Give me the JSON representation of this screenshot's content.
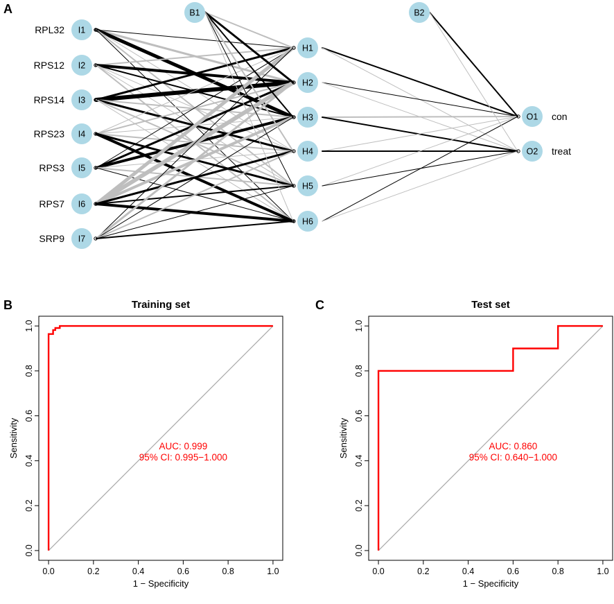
{
  "panel_labels": {
    "a": "A",
    "b": "B",
    "c": "C"
  },
  "network": {
    "genes": [
      "RPL32",
      "RPS12",
      "RPS14",
      "RPS23",
      "RPS3",
      "RPS7",
      "SRP9"
    ],
    "input_nodes": [
      "I1",
      "I2",
      "I3",
      "I4",
      "I5",
      "I6",
      "I7"
    ],
    "hidden_nodes": [
      "H1",
      "H2",
      "H3",
      "H4",
      "H5",
      "H6"
    ],
    "output_nodes": [
      "O1",
      "O2"
    ],
    "output_labels": [
      "con",
      "treat"
    ],
    "bias_nodes": [
      "B1",
      "B2"
    ],
    "colors": {
      "node": "#add8e6",
      "positive_weight": "#000000",
      "negative_weight": "#bebebe"
    },
    "input_hidden_weights": [
      [
        [
          1,
          "b"
        ],
        [
          3,
          "g"
        ],
        [
          5,
          "b"
        ],
        [
          1,
          "g"
        ],
        [
          2,
          "g"
        ],
        [
          1,
          "b"
        ]
      ],
      [
        [
          2,
          "g"
        ],
        [
          4,
          "b"
        ],
        [
          2,
          "b"
        ],
        [
          1,
          "g"
        ],
        [
          1,
          "g"
        ],
        [
          2,
          "g"
        ]
      ],
      [
        [
          3,
          "b"
        ],
        [
          6,
          "b"
        ],
        [
          2,
          "g"
        ],
        [
          3,
          "b"
        ],
        [
          2,
          "g"
        ],
        [
          1,
          "g"
        ]
      ],
      [
        [
          1,
          "g"
        ],
        [
          2,
          "g"
        ],
        [
          1,
          "g"
        ],
        [
          2,
          "g"
        ],
        [
          3,
          "b"
        ],
        [
          4,
          "b"
        ]
      ],
      [
        [
          1,
          "b"
        ],
        [
          3,
          "b"
        ],
        [
          4,
          "b"
        ],
        [
          1,
          "g"
        ],
        [
          2,
          "g"
        ],
        [
          1,
          "b"
        ]
      ],
      [
        [
          5,
          "g"
        ],
        [
          6,
          "g"
        ],
        [
          4,
          "g"
        ],
        [
          3,
          "b"
        ],
        [
          2,
          "b"
        ],
        [
          4,
          "b"
        ]
      ],
      [
        [
          1,
          "b"
        ],
        [
          3,
          "g"
        ],
        [
          1,
          "b"
        ],
        [
          2,
          "g"
        ],
        [
          1,
          "b"
        ],
        [
          2,
          "b"
        ]
      ]
    ],
    "bias1_hidden_weights": [
      [
        2,
        "g"
      ],
      [
        3,
        "b"
      ],
      [
        2,
        "b"
      ],
      [
        2,
        "g"
      ],
      [
        1,
        "b"
      ],
      [
        1,
        "g"
      ]
    ],
    "hidden_output_weights": [
      [
        [
          2,
          "b"
        ],
        [
          1,
          "g"
        ]
      ],
      [
        [
          1,
          "b"
        ],
        [
          1,
          "g"
        ]
      ],
      [
        [
          2,
          "g"
        ],
        [
          2,
          "b"
        ]
      ],
      [
        [
          1,
          "g"
        ],
        [
          2,
          "b"
        ]
      ],
      [
        [
          1,
          "g"
        ],
        [
          1,
          "b"
        ]
      ],
      [
        [
          1,
          "b"
        ],
        [
          1,
          "g"
        ]
      ]
    ],
    "bias2_output_weights": [
      [
        2,
        "b"
      ],
      [
        1,
        "g"
      ]
    ]
  },
  "chart_data": [
    {
      "type": "line",
      "title": "Training set",
      "xlabel": "1 − Specificity",
      "ylabel": "Sensitivity",
      "xlim": [
        0,
        1
      ],
      "ylim": [
        0,
        1
      ],
      "ticks": [
        "0.0",
        "0.2",
        "0.4",
        "0.6",
        "0.8",
        "1.0"
      ],
      "series": [
        {
          "name": "ROC",
          "color": "#ff0000",
          "x": [
            0,
            0,
            0.02,
            0.02,
            0.03,
            0.03,
            0.05,
            0.05,
            1
          ],
          "y": [
            0,
            0.964,
            0.964,
            0.982,
            0.982,
            0.991,
            0.991,
            1.0,
            1.0
          ]
        }
      ],
      "diagonal": {
        "color": "#a9a9a9"
      },
      "annotations": [
        "AUC: 0.999",
        "95% CI: 0.995−1.000"
      ],
      "annotation_color": "#ff0000",
      "annotation_at": [
        0.6,
        0.45
      ]
    },
    {
      "type": "line",
      "title": "Test set",
      "xlabel": "1 − Specificity",
      "ylabel": "Sensitivity",
      "xlim": [
        0,
        1
      ],
      "ylim": [
        0,
        1
      ],
      "ticks": [
        "0.0",
        "0.2",
        "0.4",
        "0.6",
        "0.8",
        "1.0"
      ],
      "series": [
        {
          "name": "ROC",
          "color": "#ff0000",
          "x": [
            0,
            0,
            0.6,
            0.6,
            0.8,
            0.8,
            1.0
          ],
          "y": [
            0,
            0.8,
            0.8,
            0.9,
            0.9,
            1.0,
            1.0
          ]
        }
      ],
      "diagonal": {
        "color": "#a9a9a9"
      },
      "annotations": [
        "AUC: 0.860",
        "95% CI: 0.640−1.000"
      ],
      "annotation_color": "#ff0000",
      "annotation_at": [
        0.6,
        0.45
      ]
    }
  ]
}
